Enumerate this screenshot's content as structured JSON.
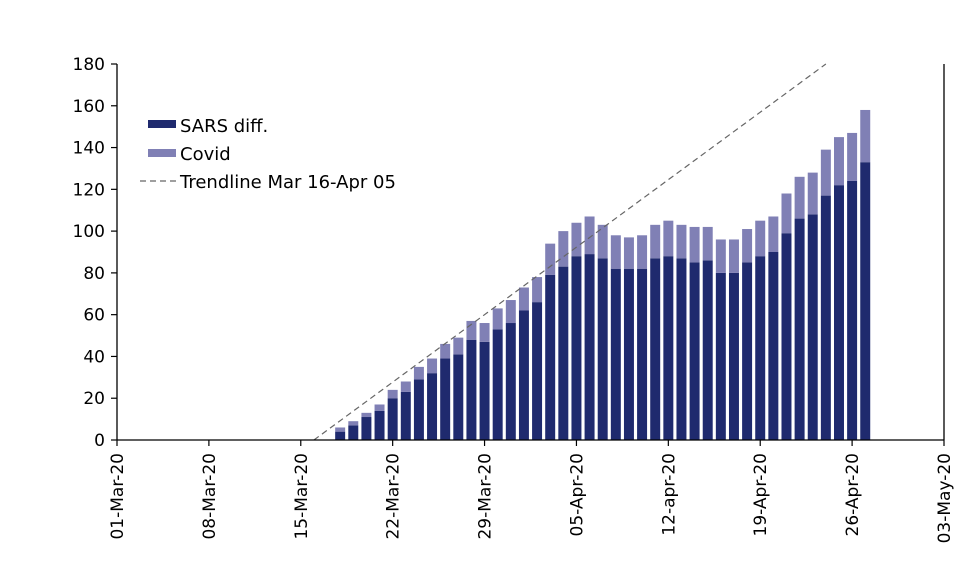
{
  "chart_data": {
    "type": "bar",
    "stacked": true,
    "x_labels": [
      "01-Mar-20",
      "08-Mar-20",
      "15-Mar-20",
      "22-Mar-20",
      "29-Mar-20",
      "05-Apr-20",
      "12-apr-20",
      "19-Apr-20",
      "26-Apr-20",
      "03-May-20"
    ],
    "y_ticks": [
      0,
      20,
      40,
      60,
      80,
      100,
      120,
      140,
      160,
      180
    ],
    "ylim": [
      0,
      180
    ],
    "x_range": [
      "2020-03-01",
      "2020-05-03"
    ],
    "legend_position": "top-left",
    "grid": false,
    "dates": [
      "2020-03-18",
      "2020-03-19",
      "2020-03-20",
      "2020-03-21",
      "2020-03-22",
      "2020-03-23",
      "2020-03-24",
      "2020-03-25",
      "2020-03-26",
      "2020-03-27",
      "2020-03-28",
      "2020-03-29",
      "2020-03-30",
      "2020-03-31",
      "2020-04-01",
      "2020-04-02",
      "2020-04-03",
      "2020-04-04",
      "2020-04-05",
      "2020-04-06",
      "2020-04-07",
      "2020-04-08",
      "2020-04-09",
      "2020-04-10",
      "2020-04-11",
      "2020-04-12",
      "2020-04-13",
      "2020-04-14",
      "2020-04-15",
      "2020-04-16",
      "2020-04-17",
      "2020-04-18",
      "2020-04-19",
      "2020-04-20",
      "2020-04-21",
      "2020-04-22",
      "2020-04-23",
      "2020-04-24",
      "2020-04-25",
      "2020-04-26",
      "2020-04-27"
    ],
    "series": [
      {
        "name": "SARS diff.",
        "color": "#1f2a6e",
        "values": [
          4,
          7,
          11,
          14,
          20,
          23,
          29,
          32,
          39,
          41,
          48,
          47,
          53,
          56,
          62,
          66,
          79,
          83,
          88,
          89,
          87,
          82,
          82,
          82,
          87,
          88,
          87,
          85,
          86,
          80,
          80,
          85,
          88,
          90,
          99,
          106,
          108,
          117,
          122,
          124,
          133
        ]
      },
      {
        "name": "Covid",
        "color": "#8080b5",
        "values": [
          2,
          2,
          2,
          3,
          4,
          5,
          6,
          7,
          7,
          8,
          9,
          9,
          10,
          11,
          11,
          12,
          15,
          17,
          16,
          18,
          16,
          16,
          15,
          16,
          16,
          17,
          16,
          17,
          16,
          16,
          16,
          16,
          17,
          17,
          19,
          20,
          20,
          22,
          23,
          23,
          25
        ]
      }
    ],
    "trendline": {
      "name": "Trendline Mar 16-Apr 05",
      "color": "#666666",
      "start": {
        "x": "2020-03-16",
        "y": 0
      },
      "end": {
        "x": "2020-04-24",
        "y": 180
      }
    }
  }
}
